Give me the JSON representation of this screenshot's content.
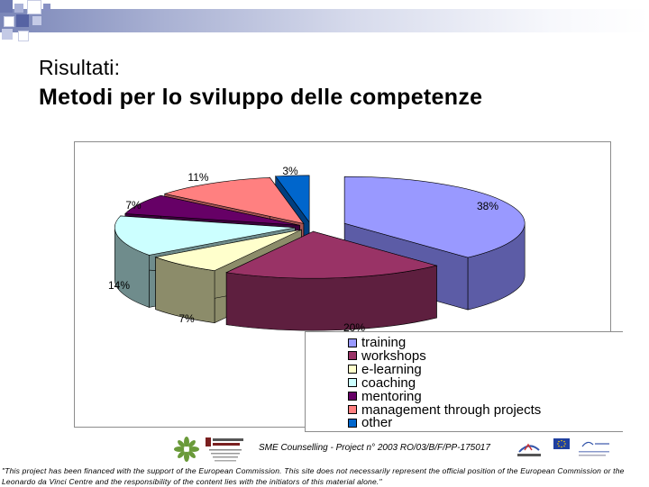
{
  "slide": {
    "title_line1": "Risultati:",
    "title_line2": "Metodi per lo sviluppo delle competenze"
  },
  "chart_data": {
    "type": "pie",
    "categories": [
      "training",
      "workshops",
      "e-learning",
      "coaching",
      "mentoring",
      "management through projects",
      "other"
    ],
    "values": [
      38,
      20,
      7,
      14,
      7,
      11,
      3
    ],
    "labels": [
      "38%",
      "20%",
      "7%",
      "14%",
      "7%",
      "11%",
      "3%"
    ],
    "colors": [
      "#9999ff",
      "#993366",
      "#ffffcc",
      "#ccffff",
      "#660066",
      "#ff8080",
      "#0066cc"
    ],
    "side_colors": [
      "#5c5ca6",
      "#5e1f3f",
      "#8c8c6a",
      "#6f8c8c",
      "#3d003d",
      "#a65454",
      "#003f80"
    ],
    "legend": "bottom-right",
    "style": "3d exploded"
  },
  "footer": {
    "project": "SME Counselling - Project n° 2003 RO/03/B/F/PP-175017",
    "disclaimer": "\"This project has been financed with the support of the European Commission. This site does not necessarily represent the official position of the European Commission or the Leonardo da Vinci Centre and the responsibility of the content lies with the initiators of this material alone.\""
  }
}
